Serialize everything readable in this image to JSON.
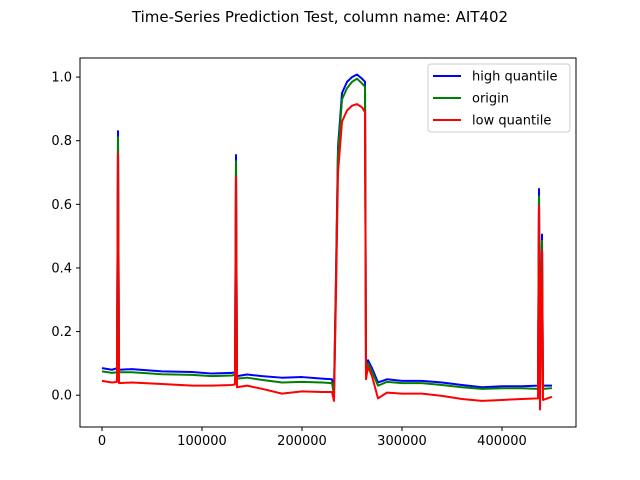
{
  "chart_data": {
    "type": "line",
    "title": "Time-Series Prediction Test, column name: AIT402",
    "xlabel": "",
    "ylabel": "",
    "xlim": [
      -22000,
      474000
    ],
    "ylim": [
      -0.1,
      1.06
    ],
    "x_ticks": [
      0,
      100000,
      200000,
      300000,
      400000
    ],
    "x_tick_labels": [
      "0",
      "100000",
      "200000",
      "300000",
      "400000"
    ],
    "y_ticks": [
      0.0,
      0.2,
      0.4,
      0.6,
      0.8,
      1.0
    ],
    "y_tick_labels": [
      "0.0",
      "0.2",
      "0.4",
      "0.6",
      "0.8",
      "1.0"
    ],
    "grid": false,
    "legend_position": "top-right",
    "series": [
      {
        "name": "high quantile",
        "color": "#0000ff",
        "points": [
          [
            0,
            0.085
          ],
          [
            10000,
            0.08
          ],
          [
            15000,
            0.085
          ],
          [
            16000,
            0.83
          ],
          [
            17000,
            0.08
          ],
          [
            30000,
            0.082
          ],
          [
            60000,
            0.075
          ],
          [
            90000,
            0.073
          ],
          [
            110000,
            0.068
          ],
          [
            130000,
            0.07
          ],
          [
            133000,
            0.072
          ],
          [
            134000,
            0.755
          ],
          [
            135000,
            0.06
          ],
          [
            145000,
            0.065
          ],
          [
            160000,
            0.06
          ],
          [
            180000,
            0.055
          ],
          [
            200000,
            0.057
          ],
          [
            220000,
            0.052
          ],
          [
            230000,
            0.05
          ],
          [
            232000,
            0.01
          ],
          [
            234000,
            0.38
          ],
          [
            236000,
            0.78
          ],
          [
            240000,
            0.95
          ],
          [
            245000,
            0.985
          ],
          [
            250000,
            1.0
          ],
          [
            255000,
            1.008
          ],
          [
            260000,
            0.995
          ],
          [
            263000,
            0.985
          ],
          [
            264000,
            0.07
          ],
          [
            266000,
            0.11
          ],
          [
            270000,
            0.085
          ],
          [
            276000,
            0.04
          ],
          [
            285000,
            0.05
          ],
          [
            300000,
            0.045
          ],
          [
            320000,
            0.045
          ],
          [
            340000,
            0.04
          ],
          [
            360000,
            0.032
          ],
          [
            380000,
            0.025
          ],
          [
            400000,
            0.028
          ],
          [
            420000,
            0.028
          ],
          [
            436000,
            0.03
          ],
          [
            437000,
            0.648
          ],
          [
            438000,
            0.04
          ],
          [
            440000,
            0.505
          ],
          [
            441000,
            0.03
          ],
          [
            450000,
            0.03
          ]
        ]
      },
      {
        "name": "origin",
        "color": "#008000",
        "points": [
          [
            0,
            0.075
          ],
          [
            10000,
            0.07
          ],
          [
            15000,
            0.072
          ],
          [
            16000,
            0.81
          ],
          [
            17000,
            0.072
          ],
          [
            30000,
            0.072
          ],
          [
            60000,
            0.066
          ],
          [
            90000,
            0.064
          ],
          [
            110000,
            0.06
          ],
          [
            130000,
            0.062
          ],
          [
            133000,
            0.064
          ],
          [
            134000,
            0.735
          ],
          [
            135000,
            0.052
          ],
          [
            145000,
            0.055
          ],
          [
            160000,
            0.048
          ],
          [
            180000,
            0.04
          ],
          [
            200000,
            0.042
          ],
          [
            220000,
            0.04
          ],
          [
            230000,
            0.038
          ],
          [
            232000,
            0.0
          ],
          [
            234000,
            0.36
          ],
          [
            236000,
            0.76
          ],
          [
            240000,
            0.93
          ],
          [
            245000,
            0.965
          ],
          [
            250000,
            0.985
          ],
          [
            255000,
            0.995
          ],
          [
            260000,
            0.98
          ],
          [
            263000,
            0.97
          ],
          [
            264000,
            0.06
          ],
          [
            266000,
            0.1
          ],
          [
            270000,
            0.075
          ],
          [
            276000,
            0.03
          ],
          [
            285000,
            0.042
          ],
          [
            300000,
            0.038
          ],
          [
            320000,
            0.038
          ],
          [
            340000,
            0.032
          ],
          [
            360000,
            0.025
          ],
          [
            380000,
            0.02
          ],
          [
            400000,
            0.022
          ],
          [
            420000,
            0.022
          ],
          [
            436000,
            0.02
          ],
          [
            437000,
            0.625
          ],
          [
            438000,
            0.03
          ],
          [
            440000,
            0.485
          ],
          [
            441000,
            0.02
          ],
          [
            450000,
            0.022
          ]
        ]
      },
      {
        "name": "low quantile",
        "color": "#ff0000",
        "points": [
          [
            0,
            0.045
          ],
          [
            10000,
            0.04
          ],
          [
            15000,
            0.042
          ],
          [
            16000,
            0.76
          ],
          [
            17000,
            0.038
          ],
          [
            30000,
            0.04
          ],
          [
            60000,
            0.035
          ],
          [
            90000,
            0.03
          ],
          [
            110000,
            0.03
          ],
          [
            130000,
            0.032
          ],
          [
            133000,
            0.034
          ],
          [
            134000,
            0.685
          ],
          [
            135000,
            0.025
          ],
          [
            145000,
            0.03
          ],
          [
            160000,
            0.02
          ],
          [
            180000,
            0.005
          ],
          [
            200000,
            0.012
          ],
          [
            220000,
            0.01
          ],
          [
            230000,
            0.01
          ],
          [
            232000,
            -0.018
          ],
          [
            234000,
            0.32
          ],
          [
            236000,
            0.7
          ],
          [
            240000,
            0.86
          ],
          [
            245000,
            0.895
          ],
          [
            250000,
            0.91
          ],
          [
            255000,
            0.915
          ],
          [
            260000,
            0.905
          ],
          [
            263000,
            0.89
          ],
          [
            264000,
            0.05
          ],
          [
            266000,
            0.09
          ],
          [
            270000,
            0.06
          ],
          [
            276000,
            -0.01
          ],
          [
            285000,
            0.008
          ],
          [
            300000,
            0.005
          ],
          [
            320000,
            0.005
          ],
          [
            340000,
            -0.002
          ],
          [
            360000,
            -0.012
          ],
          [
            380000,
            -0.018
          ],
          [
            400000,
            -0.015
          ],
          [
            420000,
            -0.012
          ],
          [
            436000,
            -0.01
          ],
          [
            437000,
            0.595
          ],
          [
            438000,
            -0.045
          ],
          [
            440000,
            0.455
          ],
          [
            441000,
            -0.015
          ],
          [
            450000,
            -0.005
          ]
        ]
      }
    ]
  }
}
